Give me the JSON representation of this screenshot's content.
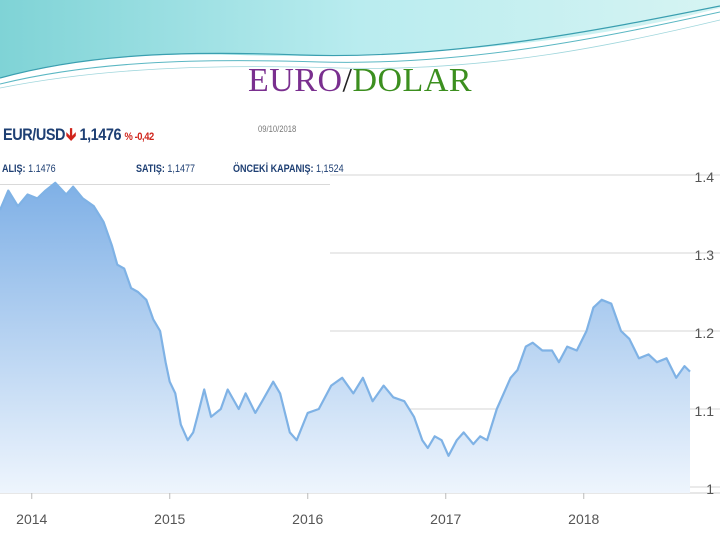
{
  "slide": {
    "title_left": "EURO",
    "title_sep": "/",
    "title_right": "DOLAR"
  },
  "ticker": {
    "pair": "EUR/USD",
    "arrow": "down-arrow-icon",
    "price": "1,1476",
    "change": "% -0,42",
    "date": "09/10/2018",
    "bid_label": "ALIŞ:",
    "bid_value": "1.1476",
    "ask_label": "SATIŞ:",
    "ask_value": "1,1477",
    "prev_label": "ÖNCEKİ KAPANIŞ:",
    "prev_value": "1,1524"
  },
  "colors": {
    "line": "#7fb2e5",
    "fill_top": "#7fb0e6",
    "fill_bottom": "#eef5fd",
    "grid": "#d4d4d4",
    "down": "#d0241b",
    "brand": "#1e3f73"
  },
  "chart_data": {
    "type": "area",
    "title": "",
    "xlabel": "",
    "ylabel": "",
    "x_ticks": [
      "2014",
      "2015",
      "2016",
      "2017",
      "2018"
    ],
    "y_ticks": [
      "1.4",
      "1.3",
      "1.2",
      "1.1",
      "1"
    ],
    "ylim": [
      1.0,
      1.4
    ],
    "xlim": [
      2013.77,
      2018.77
    ],
    "grid": "horizontal",
    "y_axis_side": "right",
    "series": [
      {
        "x": [
          2013.77,
          2013.83,
          2013.9,
          2013.97,
          2014.04,
          2014.1,
          2014.17,
          2014.25,
          2014.3,
          2014.37,
          2014.45,
          2014.52,
          2014.58,
          2014.62,
          2014.67,
          2014.72,
          2014.77,
          2014.83,
          2014.88,
          2014.93,
          2014.97,
          2015.0,
          2015.04,
          2015.08,
          2015.13,
          2015.17,
          2015.2,
          2015.25,
          2015.3,
          2015.37,
          2015.42,
          2015.5,
          2015.55,
          2015.62,
          2015.67,
          2015.75,
          2015.8,
          2015.87,
          2015.92,
          2016.0,
          2016.08,
          2016.17,
          2016.25,
          2016.33,
          2016.4,
          2016.47,
          2016.55,
          2016.62,
          2016.7,
          2016.77,
          2016.83,
          2016.87,
          2016.92,
          2016.97,
          2017.02,
          2017.08,
          2017.13,
          2017.2,
          2017.25,
          2017.3,
          2017.37,
          2017.42,
          2017.47,
          2017.52,
          2017.58,
          2017.63,
          2017.7,
          2017.77,
          2017.82,
          2017.88,
          2017.95,
          2018.02,
          2018.07,
          2018.13,
          2018.2,
          2018.27,
          2018.33,
          2018.4,
          2018.47,
          2018.53,
          2018.6,
          2018.67,
          2018.73,
          2018.77
        ],
        "y": [
          1.355,
          1.38,
          1.36,
          1.375,
          1.37,
          1.38,
          1.39,
          1.375,
          1.385,
          1.37,
          1.36,
          1.34,
          1.31,
          1.285,
          1.28,
          1.255,
          1.25,
          1.24,
          1.215,
          1.2,
          1.16,
          1.135,
          1.12,
          1.08,
          1.06,
          1.07,
          1.09,
          1.125,
          1.09,
          1.1,
          1.125,
          1.1,
          1.12,
          1.095,
          1.11,
          1.135,
          1.12,
          1.07,
          1.06,
          1.095,
          1.1,
          1.13,
          1.14,
          1.12,
          1.14,
          1.11,
          1.13,
          1.115,
          1.11,
          1.09,
          1.06,
          1.05,
          1.065,
          1.06,
          1.04,
          1.06,
          1.07,
          1.055,
          1.065,
          1.06,
          1.1,
          1.12,
          1.14,
          1.15,
          1.18,
          1.185,
          1.175,
          1.175,
          1.16,
          1.18,
          1.175,
          1.2,
          1.23,
          1.24,
          1.235,
          1.2,
          1.19,
          1.165,
          1.17,
          1.16,
          1.165,
          1.14,
          1.155,
          1.148
        ]
      }
    ]
  }
}
